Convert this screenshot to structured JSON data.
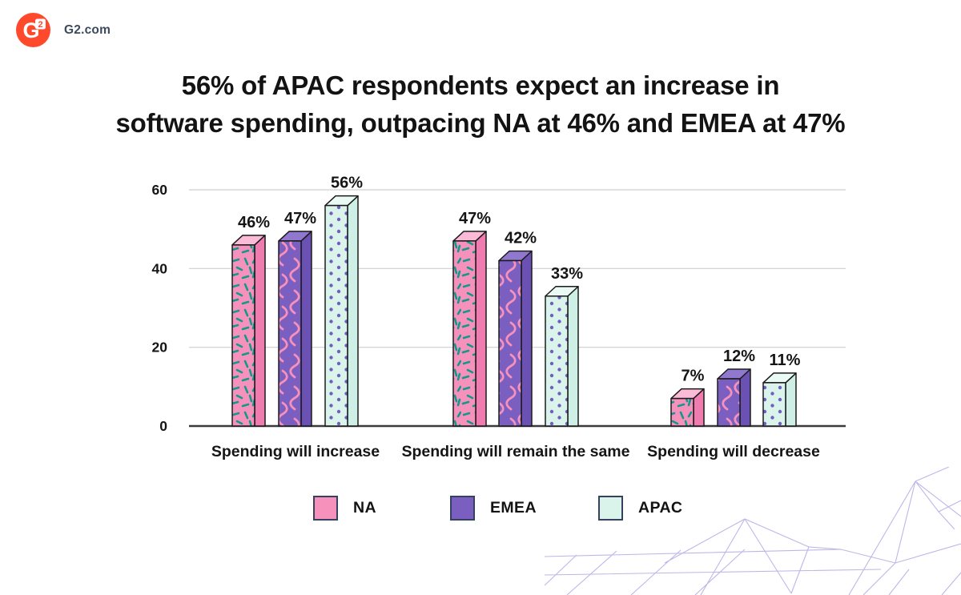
{
  "header": {
    "site": "G2.com",
    "logo_letter": "G",
    "logo_superscript": "2",
    "logo_color": "#FF492C"
  },
  "title": {
    "line1": "56% of APAC respondents expect an increase in",
    "line2": "software spending, outpacing NA at 46% and EMEA at 47%"
  },
  "chart_data": {
    "type": "bar",
    "title": "56% of APAC respondents expect an increase in software spending, outpacing NA at 46% and EMEA at 47%",
    "categories": [
      "Spending will increase",
      "Spending will remain the same",
      "Spending will decrease"
    ],
    "series": [
      {
        "name": "NA",
        "values": [
          46,
          47,
          7
        ],
        "color": "#F691BC",
        "pattern": "confetti",
        "pattern_color": "#12998A",
        "top_color": "#FBBBD7",
        "side_color": "#F07CAF"
      },
      {
        "name": "EMEA",
        "values": [
          47,
          42,
          12
        ],
        "color": "#7A5FC1",
        "pattern": "squiggle",
        "pattern_color": "#F791BB",
        "top_color": "#9078CE",
        "side_color": "#6B51B3"
      },
      {
        "name": "APAC",
        "values": [
          56,
          33,
          11
        ],
        "color": "#DAF4EC",
        "pattern": "dots",
        "pattern_color": "#6F5FC0",
        "top_color": "#EAFAF5",
        "side_color": "#CDEFE5"
      }
    ],
    "value_label_suffix": "%",
    "xlabel": "",
    "ylabel": "",
    "ylim": [
      0,
      60
    ],
    "yticks": [
      0,
      20,
      40,
      60
    ],
    "grid": true,
    "gridline_color": "#CFCFCF",
    "axis_color": "#3A3A3A",
    "outline_color": "#1B1B1B",
    "legend_position": "bottom"
  },
  "decor": {
    "mesh_color": "#BDB7E8"
  }
}
